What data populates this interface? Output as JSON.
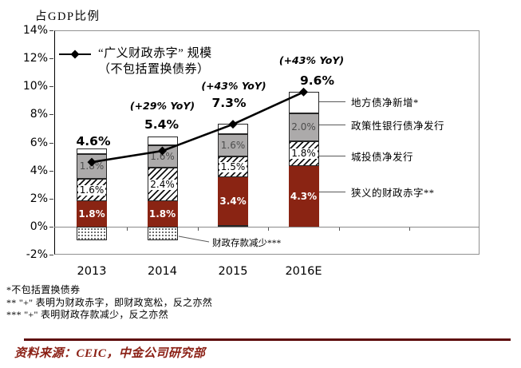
{
  "chart_data": {
    "type": "combo-stacked-bar-line",
    "title": "“广义财政赤字”规模占GDP比例",
    "categories": [
      "2013",
      "2014",
      "2015",
      "2016E"
    ],
    "y_axis": {
      "title": "占GDP比例",
      "unit": "%",
      "min": -2,
      "max": 14,
      "tick_step": 2,
      "tick_labels": [
        "14%",
        "12%",
        "10%",
        "8%",
        "6%",
        "4%",
        "2%",
        "0%",
        "-2%"
      ]
    },
    "legend": {
      "line1": "“广义财政赤字” 规模",
      "line2": "（不包括置换债券）"
    },
    "series": [
      {
        "name": "财政存款减少***",
        "type": "bar",
        "style": "dots",
        "values": [
          -0.95,
          -1.0,
          0.1,
          0
        ],
        "labels": [
          "",
          "",
          "",
          ""
        ]
      },
      {
        "name": "狭义的财政赤字**",
        "type": "bar",
        "style": "maroon",
        "color": "#8a2413",
        "values": [
          1.8,
          1.8,
          3.4,
          4.3
        ],
        "labels": [
          "1.8%",
          "1.8%",
          "3.4%",
          "4.3%"
        ]
      },
      {
        "name": "城投债净发行",
        "type": "bar",
        "style": "hatch",
        "values": [
          1.6,
          2.4,
          1.5,
          1.8
        ],
        "labels": [
          "1.6%",
          "2.4%",
          "1.5%",
          "1.8%"
        ]
      },
      {
        "name": "政策性银行债净发行",
        "type": "bar",
        "style": "gray",
        "color": "#acaaaa",
        "values": [
          1.8,
          1.6,
          1.6,
          2.0
        ],
        "labels": [
          "1.8%",
          "1.6%",
          "1.6%",
          "2.0%"
        ]
      },
      {
        "name": "地方债净新增*",
        "type": "bar",
        "style": "white",
        "color": "#ffffff",
        "values": [
          0.35,
          0.65,
          0.75,
          1.5
        ],
        "labels": [
          "",
          "",
          "",
          ""
        ]
      }
    ],
    "line_series": {
      "name": "“广义财政赤字” 规模（不包括置换债券）",
      "values": [
        4.6,
        5.4,
        7.3,
        9.6
      ],
      "color": "#000000",
      "marker": "diamond"
    },
    "annotations": {
      "totals": [
        "4.6%",
        "5.4%",
        "7.3%",
        "9.6%"
      ],
      "yoy": [
        "",
        "(+29% YoY)",
        "(+43% YoY)",
        "(+43% YoY)"
      ]
    }
  },
  "footer": {
    "notes": [
      "*不包括置换债券",
      "** \"+\" 表明为财政赤字，即财政宽松，反之亦然",
      "*** \"+\" 表明财政存款减少，反之亦然"
    ],
    "source": "资料来源：CEIC，中金公司研究部",
    "accent_color": "#8b2015"
  }
}
